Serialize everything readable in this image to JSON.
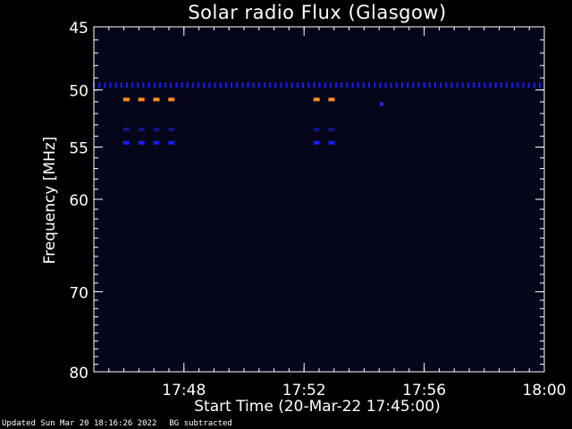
{
  "chart_data": {
    "type": "heatmap",
    "title": "Solar radio Flux (Glasgow)",
    "xlabel": "Start Time (20-Mar-22 17:45:00)",
    "ylabel": "Frequency [MHz]",
    "x_unit": "time",
    "xlim": [
      "17:45:00",
      "18:00:00"
    ],
    "ylim": [
      45,
      80
    ],
    "y_axis_inverted": true,
    "y_scale": "log",
    "x_tick_labels": [
      "17:48",
      "17:52",
      "17:56",
      "18:00"
    ],
    "x_ticks": [
      "17:48:00",
      "17:52:00",
      "17:56:00",
      "18:00:00"
    ],
    "y_ticks": [
      45,
      50,
      55,
      60,
      70,
      80
    ],
    "y_tick_labels": [
      "45",
      "50",
      "55",
      "60",
      "70",
      "80"
    ],
    "background_color": "#000000",
    "plot_fill_color": "#05051a",
    "features": [
      {
        "kind": "dotted-band",
        "frequency_mhz": 49.6,
        "time_start": "17:45:00",
        "time_end": "18:00:00",
        "step_seconds": 11,
        "color": "#1a1aff"
      },
      {
        "kind": "dashes",
        "frequency_mhz": 50.8,
        "times": [
          "17:46:05",
          "17:46:35",
          "17:47:05",
          "17:47:35",
          "17:52:25",
          "17:52:55"
        ],
        "color": "#ff8c1a"
      },
      {
        "kind": "dashes",
        "frequency_mhz": 53.4,
        "times": [
          "17:46:05",
          "17:46:35",
          "17:47:05",
          "17:47:35",
          "17:52:25",
          "17:52:55"
        ],
        "color": "#14148c"
      },
      {
        "kind": "dashes",
        "frequency_mhz": 54.6,
        "times": [
          "17:46:05",
          "17:46:35",
          "17:47:05",
          "17:47:35",
          "17:52:25",
          "17:52:55"
        ],
        "color": "#1a1aff"
      },
      {
        "kind": "dot",
        "frequency_mhz": 51.2,
        "time": "17:54:35",
        "color": "#2828ff"
      }
    ]
  },
  "footer": {
    "updated": "Updated Sun Mar 20 18:16:26 2022",
    "note": "BG subtracted"
  }
}
